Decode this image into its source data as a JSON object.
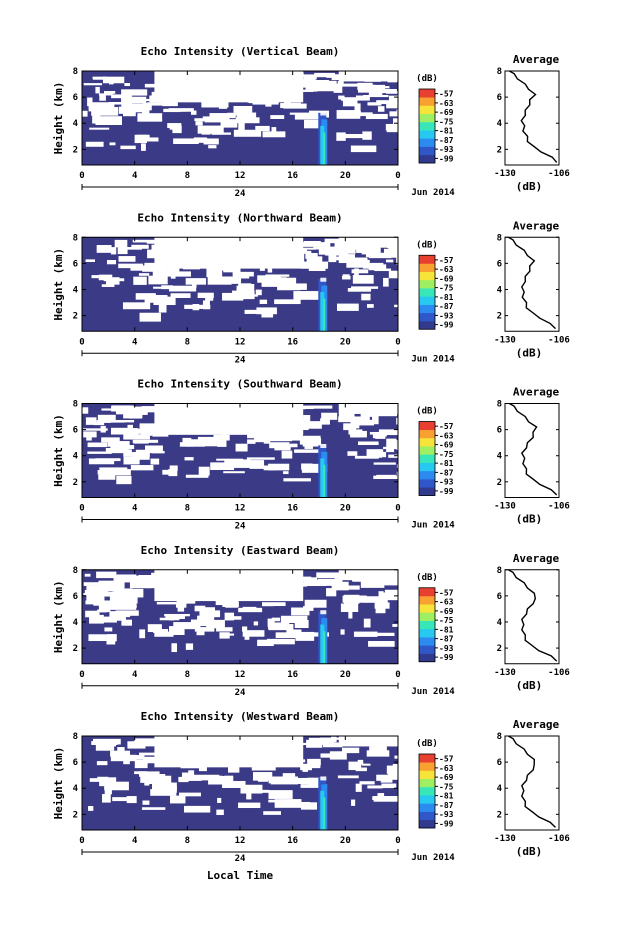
{
  "chart_data": {
    "type": "heatmap",
    "xlabel": "Local Time",
    "date_label": "24",
    "month_label": "Jun 2014",
    "x_ticks": [
      "0",
      "4",
      "8",
      "12",
      "16",
      "20",
      "0"
    ],
    "y_ticks": [
      "2",
      "4",
      "6",
      "8"
    ],
    "ylabel": "Height (km)",
    "xlim": [
      0,
      24
    ],
    "ylim": [
      0.8,
      8
    ],
    "colorbar": {
      "unit": "(dB)",
      "ticks": [
        "-57",
        "-63",
        "-69",
        "-75",
        "-81",
        "-87",
        "-93",
        "-99"
      ],
      "range": [
        -102,
        -54
      ]
    },
    "average": {
      "title": "Average",
      "xlabel": "(dB)",
      "x_ticks": [
        "-130",
        "-106"
      ],
      "xlim": [
        -130,
        -106
      ],
      "y_ticks": [
        "2",
        "4",
        "6",
        "8"
      ]
    },
    "panels": [
      {
        "title": "Echo Intensity (Vertical Beam)",
        "avg_profile": [
          [
            1.0,
            -106.5
          ],
          [
            1.4,
            -109.5
          ],
          [
            1.8,
            -113.5
          ],
          [
            2.2,
            -117.5
          ],
          [
            2.6,
            -119.5
          ],
          [
            3.0,
            -120.5
          ],
          [
            3.4,
            -121.5
          ],
          [
            3.8,
            -121.8
          ],
          [
            4.2,
            -122.2
          ],
          [
            4.6,
            -121.5
          ],
          [
            5.0,
            -120.5
          ],
          [
            5.4,
            -119.5
          ],
          [
            5.8,
            -118.5
          ],
          [
            6.2,
            -117.0
          ],
          [
            6.6,
            -119.0
          ],
          [
            7.0,
            -121.5
          ],
          [
            7.4,
            -124.0
          ],
          [
            7.8,
            -126.5
          ],
          [
            8.0,
            -127.5
          ]
        ]
      },
      {
        "title": "Echo Intensity (Northward Beam)",
        "avg_profile": [
          [
            1.0,
            -107.0
          ],
          [
            1.4,
            -110.5
          ],
          [
            1.8,
            -114.0
          ],
          [
            2.2,
            -118.0
          ],
          [
            2.6,
            -120.0
          ],
          [
            3.0,
            -121.0
          ],
          [
            3.4,
            -121.8
          ],
          [
            3.8,
            -122.0
          ],
          [
            4.2,
            -122.0
          ],
          [
            4.6,
            -121.5
          ],
          [
            5.0,
            -120.5
          ],
          [
            5.4,
            -119.5
          ],
          [
            5.8,
            -118.5
          ],
          [
            6.2,
            -117.5
          ],
          [
            6.6,
            -119.5
          ],
          [
            7.0,
            -122.0
          ],
          [
            7.4,
            -124.5
          ],
          [
            7.8,
            -127.0
          ],
          [
            8.0,
            -128.0
          ]
        ]
      },
      {
        "title": "Echo Intensity (Southward Beam)",
        "avg_profile": [
          [
            1.0,
            -106.5
          ],
          [
            1.4,
            -110.0
          ],
          [
            1.8,
            -114.0
          ],
          [
            2.2,
            -118.0
          ],
          [
            2.6,
            -120.0
          ],
          [
            3.0,
            -121.0
          ],
          [
            3.4,
            -121.5
          ],
          [
            3.8,
            -121.8
          ],
          [
            4.2,
            -122.0
          ],
          [
            4.6,
            -121.0
          ],
          [
            5.0,
            -119.5
          ],
          [
            5.4,
            -118.0
          ],
          [
            5.8,
            -117.0
          ],
          [
            6.2,
            -116.5
          ],
          [
            6.6,
            -119.0
          ],
          [
            7.0,
            -121.5
          ],
          [
            7.4,
            -124.0
          ],
          [
            7.8,
            -126.5
          ],
          [
            8.0,
            -127.5
          ]
        ]
      },
      {
        "title": "Echo Intensity (Eastward Beam)",
        "avg_profile": [
          [
            1.0,
            -106.5
          ],
          [
            1.4,
            -110.0
          ],
          [
            1.8,
            -114.5
          ],
          [
            2.2,
            -118.5
          ],
          [
            2.6,
            -120.5
          ],
          [
            3.0,
            -121.5
          ],
          [
            3.4,
            -122.0
          ],
          [
            3.8,
            -122.2
          ],
          [
            4.2,
            -122.0
          ],
          [
            4.6,
            -121.0
          ],
          [
            5.0,
            -119.5
          ],
          [
            5.4,
            -118.0
          ],
          [
            5.8,
            -116.0
          ],
          [
            6.2,
            -117.5
          ],
          [
            6.6,
            -119.5
          ],
          [
            7.0,
            -122.0
          ],
          [
            7.4,
            -124.5
          ],
          [
            7.8,
            -127.0
          ],
          [
            8.0,
            -128.0
          ]
        ]
      },
      {
        "title": "Echo Intensity (Westward Beam)",
        "avg_profile": [
          [
            1.0,
            -107.0
          ],
          [
            1.4,
            -110.5
          ],
          [
            1.8,
            -114.5
          ],
          [
            2.2,
            -118.5
          ],
          [
            2.6,
            -120.5
          ],
          [
            3.0,
            -121.5
          ],
          [
            3.4,
            -122.0
          ],
          [
            3.8,
            -122.2
          ],
          [
            4.2,
            -122.0
          ],
          [
            4.6,
            -121.0
          ],
          [
            5.0,
            -119.5
          ],
          [
            5.4,
            -118.0
          ],
          [
            5.8,
            -116.5
          ],
          [
            6.2,
            -117.5
          ],
          [
            6.6,
            -119.5
          ],
          [
            7.0,
            -122.0
          ],
          [
            7.4,
            -124.5
          ],
          [
            7.8,
            -127.0
          ],
          [
            8.0,
            -128.0
          ]
        ]
      }
    ]
  },
  "colors": {
    "background_echo": "#3b3a86",
    "colormap": [
      "#303a8e",
      "#2f57c7",
      "#2b8bf0",
      "#27c9f0",
      "#39e6b8",
      "#9ef062",
      "#f7e43a",
      "#f8a030",
      "#e84030"
    ]
  }
}
